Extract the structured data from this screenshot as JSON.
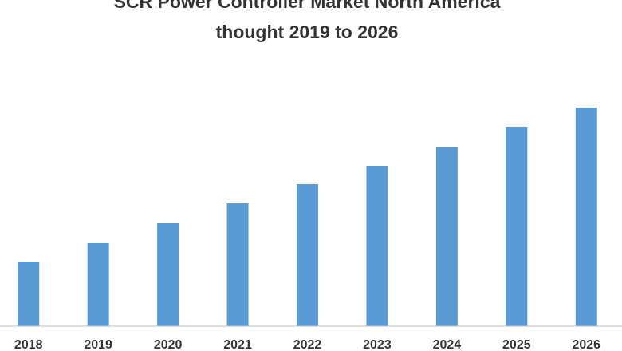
{
  "chart_data": {
    "type": "bar",
    "title": [
      "SCR Power Controller Market North America",
      "thought 2019 to 2026"
    ],
    "categories": [
      "2018",
      "2019",
      "2020",
      "2021",
      "2022",
      "2023",
      "2024",
      "2025",
      "2026"
    ],
    "values": [
      81,
      105,
      129,
      154,
      178,
      201,
      225,
      250,
      274
    ],
    "color": "#5b9bd5",
    "ylim": [
      0,
      300
    ]
  }
}
